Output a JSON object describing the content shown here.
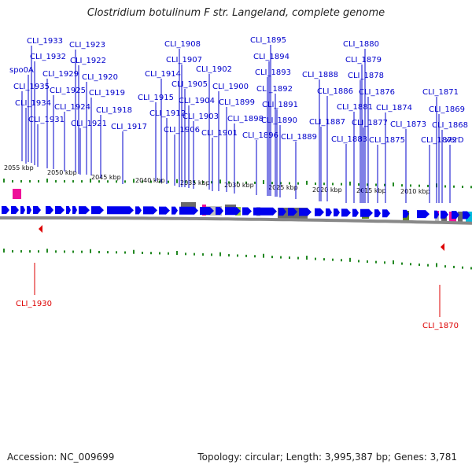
{
  "title": "Clostridium botulinum F str. Langeland, complete genome",
  "footer": {
    "accession": "Accession: NC_009699",
    "summary": "Topology: circular; Length: 3,995,387 bp; Genes: 3,781"
  },
  "colors": {
    "gene_label": "#0000cc",
    "gene_arrow": "#0000ee",
    "highlight_label": "#dd0000",
    "tick": "#228822",
    "backbone": "#888888",
    "feature_gray": "#6a6a6a",
    "feature_light_gray": "#c0c0c0",
    "feature_pink": "#ee1199",
    "feature_olive": "#668822",
    "feature_lime": "#99cc33",
    "feature_cyan": "#00bbdd"
  },
  "ruler": [
    "2055 kbp",
    "2050 kbp",
    "2045 kbp",
    "2040 kbp",
    "2035 kbp",
    "2030 kbp",
    "2025 kbp",
    "2020 kbp",
    "2015 kbp",
    "2010 kbp"
  ],
  "gene_labels": [
    "CLI_1933",
    "CLI_1932",
    "spo0A",
    "CLI_1935",
    "CLI_1934",
    "CLI_1931",
    "CLI_1929",
    "CLI_1925",
    "CLI_1924",
    "CLI_1923",
    "CLI_1922",
    "CLI_1920",
    "CLI_1919",
    "CLI_1921",
    "CLI_1918",
    "CLI_1917",
    "CLI_1914",
    "CLI_1915",
    "CLI_1908",
    "CLI_1907",
    "CLI_1905",
    "CLI_1912",
    "CLI_1904",
    "CLI_1906",
    "CLI_1903",
    "CLI_1902",
    "CLI_1900",
    "CLI_1899",
    "CLI_1901",
    "CLI_1898",
    "CLI_1895",
    "CLI_1894",
    "CLI_1893",
    "CLI_1892",
    "CLI_1891",
    "CLI_1896",
    "CLI_1890",
    "CLI_1889",
    "CLI_1888",
    "CLI_1886",
    "CLI_1887",
    "CLI_1880",
    "CLI_1879",
    "CLI_1878",
    "CLI_1876",
    "CLI_1881",
    "CLI_1877",
    "CLI_1883",
    "CLI_1874",
    "CLI_1875",
    "CLI_1873",
    "CLI_1871",
    "CLI_1869",
    "CLI_1872",
    "CLI_1868",
    "xerD"
  ],
  "highlight_labels": [
    "CLI_1930",
    "CLI_1870"
  ]
}
